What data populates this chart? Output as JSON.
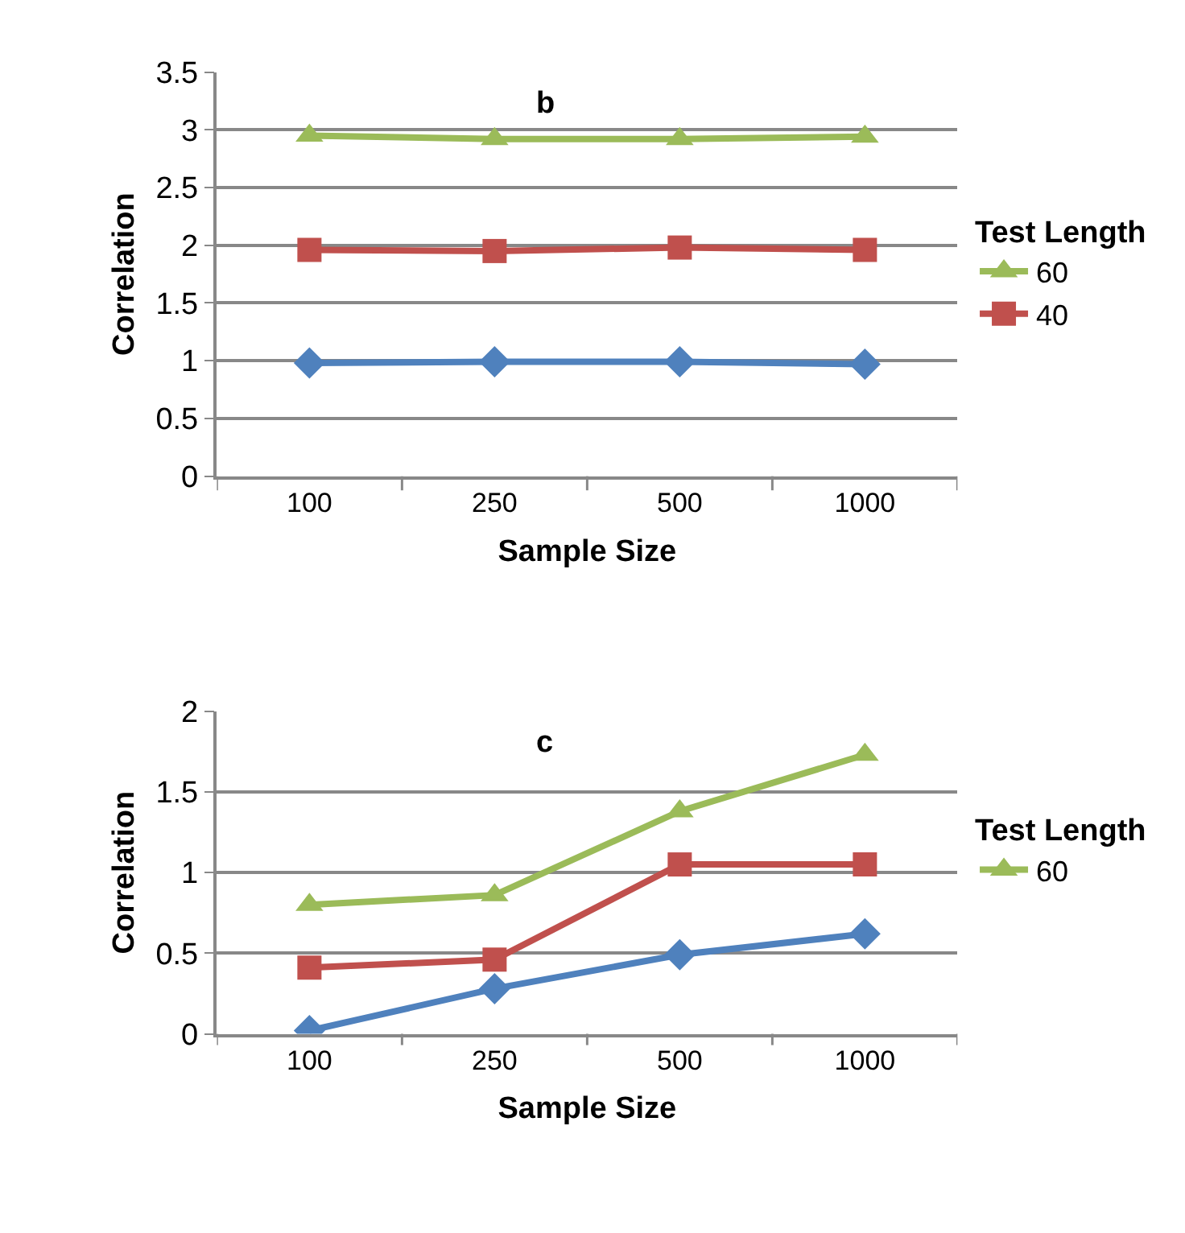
{
  "chart_data": [
    {
      "type": "line",
      "title": "b",
      "xlabel": "Sample Size",
      "ylabel": "Correlation",
      "legend_title": "Test Length",
      "categories": [
        "100",
        "250",
        "500",
        "1000"
      ],
      "ylim": [
        0,
        3.5
      ],
      "yticks": [
        0,
        0.5,
        1,
        1.5,
        2,
        2.5,
        3,
        3.5
      ],
      "grid": "y",
      "legend": "right",
      "series": [
        {
          "name": "60",
          "color": "#9bbb59",
          "marker": "triangle",
          "values": [
            2.95,
            2.92,
            2.92,
            2.94
          ]
        },
        {
          "name": "40",
          "color": "#c0504d",
          "marker": "square",
          "values": [
            1.96,
            1.95,
            1.98,
            1.96
          ]
        },
        {
          "color": "#4f81bd",
          "marker": "diamond",
          "values": [
            0.98,
            0.99,
            0.99,
            0.97
          ]
        }
      ]
    },
    {
      "type": "line",
      "title": "c",
      "xlabel": "Sample Size",
      "ylabel": "Correlation",
      "legend_title": "Test Length",
      "categories": [
        "100",
        "250",
        "500",
        "1000"
      ],
      "ylim": [
        0,
        2
      ],
      "yticks": [
        0,
        0.5,
        1,
        1.5,
        2
      ],
      "grid": "y",
      "legend": "right",
      "series": [
        {
          "name": "60",
          "color": "#9bbb59",
          "marker": "triangle",
          "values": [
            0.8,
            0.86,
            1.38,
            1.73
          ]
        },
        {
          "color": "#c0504d",
          "marker": "square",
          "values": [
            0.41,
            0.46,
            1.05,
            1.05
          ]
        },
        {
          "color": "#4f81bd",
          "marker": "diamond",
          "values": [
            0.02,
            0.28,
            0.49,
            0.62
          ]
        }
      ]
    }
  ]
}
